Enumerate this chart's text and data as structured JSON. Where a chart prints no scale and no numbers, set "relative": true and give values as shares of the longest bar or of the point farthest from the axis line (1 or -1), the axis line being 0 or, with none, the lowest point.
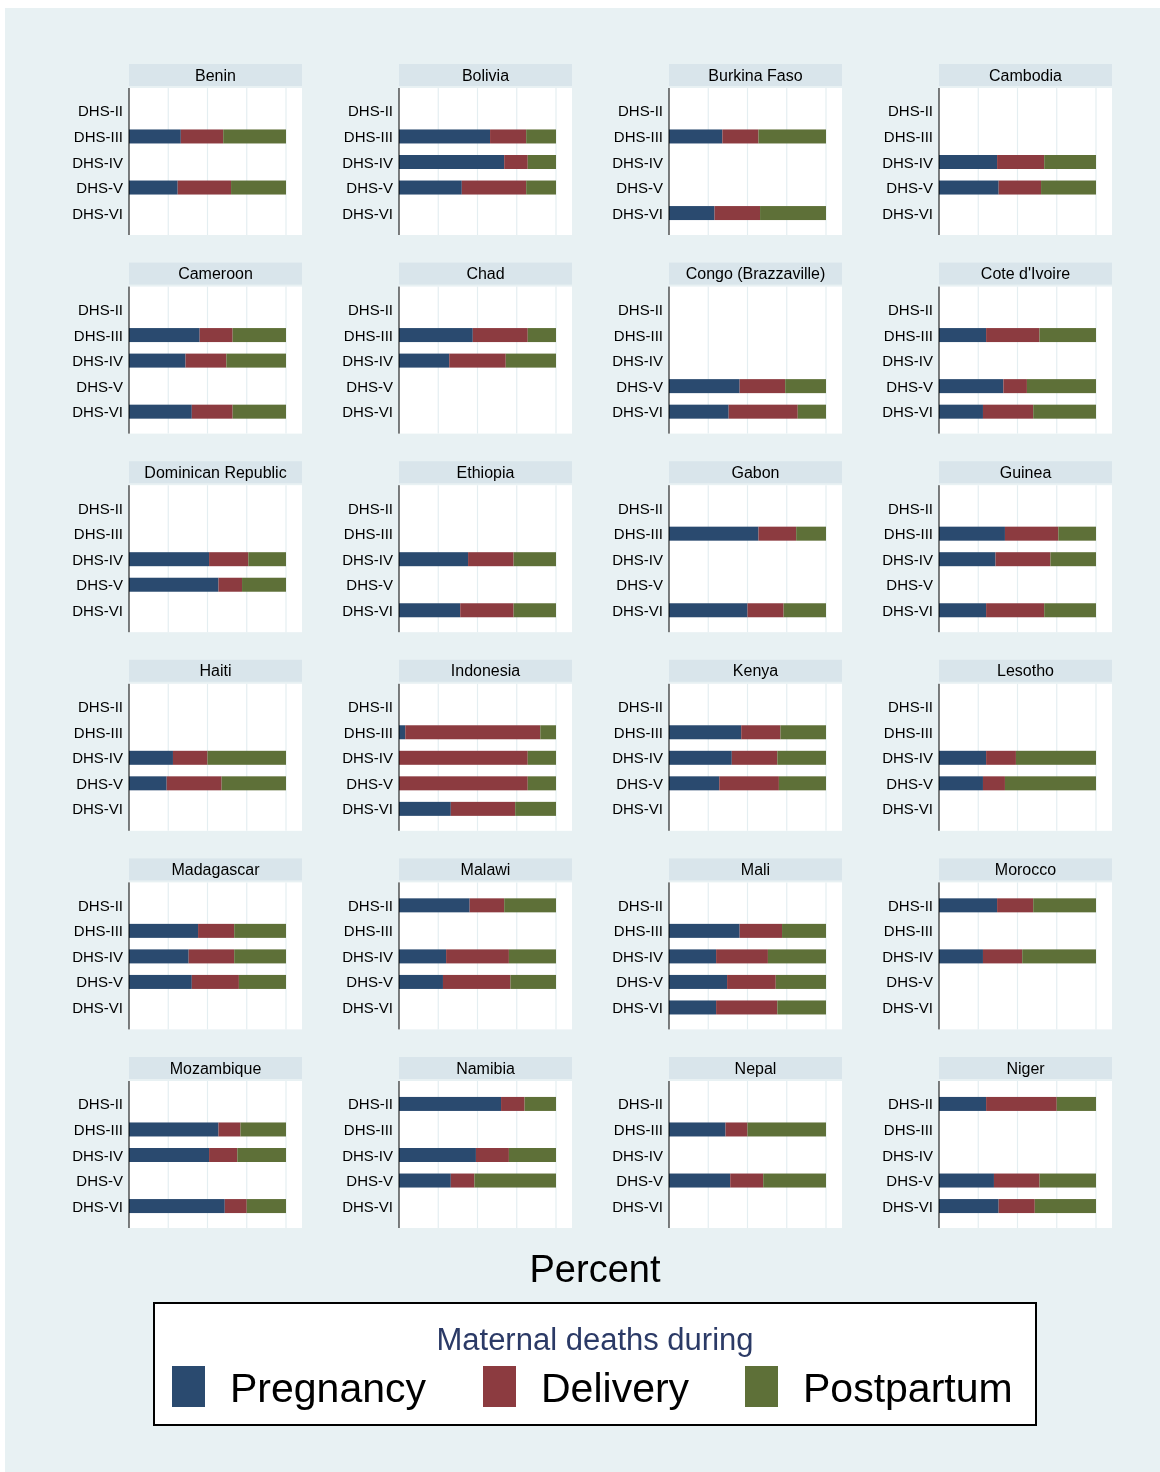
{
  "chart_data": [
    {
      "type": "bar",
      "title": "Benin",
      "orientation": "horizontal",
      "stacked": true,
      "relative": true,
      "grid": "x",
      "tick_labels": "y",
      "legend": "bottom",
      "legend_title": "Maternal deaths during",
      "categories": [
        "DHS-II",
        "DHS-III",
        "DHS-IV",
        "DHS-V",
        "DHS-VI"
      ],
      "series": [
        {
          "name": "Pregnancy",
          "color": "#2a4a6f",
          "values": [
            null,
            0.33,
            null,
            0.31,
            null
          ]
        },
        {
          "name": "Delivery",
          "color": "#8c3b40",
          "values": [
            null,
            0.27,
            null,
            0.34,
            null
          ]
        },
        {
          "name": "Postpartum",
          "color": "#5e7038",
          "values": [
            null,
            0.4,
            null,
            0.35,
            null
          ]
        }
      ]
    },
    {
      "type": "bar",
      "title": "Bolivia",
      "orientation": "horizontal",
      "stacked": true,
      "relative": true,
      "grid": "x",
      "tick_labels": "y",
      "categories": [
        "DHS-II",
        "DHS-III",
        "DHS-IV",
        "DHS-V",
        "DHS-VI"
      ],
      "series": [
        {
          "color": "#2a4a6f",
          "values": [
            null,
            0.58,
            0.67,
            0.4,
            null
          ]
        },
        {
          "color": "#8c3b40",
          "values": [
            null,
            0.23,
            0.15,
            0.41,
            null
          ]
        },
        {
          "color": "#5e7038",
          "values": [
            null,
            0.19,
            0.18,
            0.19,
            null
          ]
        }
      ]
    },
    {
      "type": "bar",
      "title": "Burkina Faso",
      "orientation": "horizontal",
      "stacked": true,
      "relative": true,
      "grid": "x",
      "tick_labels": "y",
      "categories": [
        "DHS-II",
        "DHS-III",
        "DHS-IV",
        "DHS-V",
        "DHS-VI"
      ],
      "series": [
        {
          "color": "#2a4a6f",
          "values": [
            null,
            0.34,
            null,
            null,
            0.29
          ]
        },
        {
          "color": "#8c3b40",
          "values": [
            null,
            0.23,
            null,
            null,
            0.29
          ]
        },
        {
          "color": "#5e7038",
          "values": [
            null,
            0.43,
            null,
            null,
            0.42
          ]
        }
      ]
    },
    {
      "type": "bar",
      "title": "Cambodia",
      "orientation": "horizontal",
      "stacked": true,
      "relative": true,
      "grid": "x",
      "tick_labels": "y",
      "categories": [
        "DHS-II",
        "DHS-III",
        "DHS-IV",
        "DHS-V",
        "DHS-VI"
      ],
      "series": [
        {
          "color": "#2a4a6f",
          "values": [
            null,
            null,
            0.37,
            0.38,
            null
          ]
        },
        {
          "color": "#8c3b40",
          "values": [
            null,
            null,
            0.3,
            0.27,
            null
          ]
        },
        {
          "color": "#5e7038",
          "values": [
            null,
            null,
            0.33,
            0.35,
            null
          ]
        }
      ]
    },
    {
      "type": "bar",
      "title": "Cameroon",
      "orientation": "horizontal",
      "stacked": true,
      "relative": true,
      "grid": "x",
      "tick_labels": "y",
      "categories": [
        "DHS-II",
        "DHS-III",
        "DHS-IV",
        "DHS-V",
        "DHS-VI"
      ],
      "series": [
        {
          "color": "#2a4a6f",
          "values": [
            null,
            0.45,
            0.36,
            null,
            0.4
          ]
        },
        {
          "color": "#8c3b40",
          "values": [
            null,
            0.21,
            0.26,
            null,
            0.26
          ]
        },
        {
          "color": "#5e7038",
          "values": [
            null,
            0.34,
            0.38,
            null,
            0.34
          ]
        }
      ]
    },
    {
      "type": "bar",
      "title": "Chad",
      "orientation": "horizontal",
      "stacked": true,
      "relative": true,
      "grid": "x",
      "tick_labels": "y",
      "categories": [
        "DHS-II",
        "DHS-III",
        "DHS-IV",
        "DHS-V",
        "DHS-VI"
      ],
      "series": [
        {
          "color": "#2a4a6f",
          "values": [
            null,
            0.47,
            0.32,
            null,
            null
          ]
        },
        {
          "color": "#8c3b40",
          "values": [
            null,
            0.35,
            0.36,
            null,
            null
          ]
        },
        {
          "color": "#5e7038",
          "values": [
            null,
            0.18,
            0.32,
            null,
            null
          ]
        }
      ]
    },
    {
      "type": "bar",
      "title": "Congo (Brazzaville)",
      "orientation": "horizontal",
      "stacked": true,
      "relative": true,
      "grid": "x",
      "tick_labels": "y",
      "categories": [
        "DHS-II",
        "DHS-III",
        "DHS-IV",
        "DHS-V",
        "DHS-VI"
      ],
      "series": [
        {
          "color": "#2a4a6f",
          "values": [
            null,
            null,
            null,
            0.45,
            0.38
          ]
        },
        {
          "color": "#8c3b40",
          "values": [
            null,
            null,
            null,
            0.29,
            0.44
          ]
        },
        {
          "color": "#5e7038",
          "values": [
            null,
            null,
            null,
            0.26,
            0.18
          ]
        }
      ]
    },
    {
      "type": "bar",
      "title": "Cote d'Ivoire",
      "orientation": "horizontal",
      "stacked": true,
      "relative": true,
      "grid": "x",
      "tick_labels": "y",
      "categories": [
        "DHS-II",
        "DHS-III",
        "DHS-IV",
        "DHS-V",
        "DHS-VI"
      ],
      "series": [
        {
          "color": "#2a4a6f",
          "values": [
            null,
            0.3,
            null,
            0.41,
            0.28
          ]
        },
        {
          "color": "#8c3b40",
          "values": [
            null,
            0.34,
            null,
            0.15,
            0.32
          ]
        },
        {
          "color": "#5e7038",
          "values": [
            null,
            0.36,
            null,
            0.44,
            0.4
          ]
        }
      ]
    },
    {
      "type": "bar",
      "title": "Dominican Republic",
      "orientation": "horizontal",
      "stacked": true,
      "relative": true,
      "grid": "x",
      "tick_labels": "y",
      "categories": [
        "DHS-II",
        "DHS-III",
        "DHS-IV",
        "DHS-V",
        "DHS-VI"
      ],
      "series": [
        {
          "color": "#2a4a6f",
          "values": [
            null,
            null,
            0.51,
            0.57,
            null
          ]
        },
        {
          "color": "#8c3b40",
          "values": [
            null,
            null,
            0.25,
            0.15,
            null
          ]
        },
        {
          "color": "#5e7038",
          "values": [
            null,
            null,
            0.24,
            0.28,
            null
          ]
        }
      ]
    },
    {
      "type": "bar",
      "title": "Ethiopia",
      "orientation": "horizontal",
      "stacked": true,
      "relative": true,
      "grid": "x",
      "tick_labels": "y",
      "categories": [
        "DHS-II",
        "DHS-III",
        "DHS-IV",
        "DHS-V",
        "DHS-VI"
      ],
      "series": [
        {
          "color": "#2a4a6f",
          "values": [
            null,
            null,
            0.44,
            null,
            0.39
          ]
        },
        {
          "color": "#8c3b40",
          "values": [
            null,
            null,
            0.29,
            null,
            0.34
          ]
        },
        {
          "color": "#5e7038",
          "values": [
            null,
            null,
            0.27,
            null,
            0.27
          ]
        }
      ]
    },
    {
      "type": "bar",
      "title": "Gabon",
      "orientation": "horizontal",
      "stacked": true,
      "relative": true,
      "grid": "x",
      "tick_labels": "y",
      "categories": [
        "DHS-II",
        "DHS-III",
        "DHS-IV",
        "DHS-V",
        "DHS-VI"
      ],
      "series": [
        {
          "color": "#2a4a6f",
          "values": [
            null,
            0.57,
            null,
            null,
            0.5
          ]
        },
        {
          "color": "#8c3b40",
          "values": [
            null,
            0.24,
            null,
            null,
            0.23
          ]
        },
        {
          "color": "#5e7038",
          "values": [
            null,
            0.19,
            null,
            null,
            0.27
          ]
        }
      ]
    },
    {
      "type": "bar",
      "title": "Guinea",
      "orientation": "horizontal",
      "stacked": true,
      "relative": true,
      "grid": "x",
      "tick_labels": "y",
      "categories": [
        "DHS-II",
        "DHS-III",
        "DHS-IV",
        "DHS-V",
        "DHS-VI"
      ],
      "series": [
        {
          "color": "#2a4a6f",
          "values": [
            null,
            0.42,
            0.36,
            null,
            0.3
          ]
        },
        {
          "color": "#8c3b40",
          "values": [
            null,
            0.34,
            0.35,
            null,
            0.37
          ]
        },
        {
          "color": "#5e7038",
          "values": [
            null,
            0.24,
            0.29,
            null,
            0.33
          ]
        }
      ]
    },
    {
      "type": "bar",
      "title": "Haiti",
      "orientation": "horizontal",
      "stacked": true,
      "relative": true,
      "grid": "x",
      "tick_labels": "y",
      "categories": [
        "DHS-II",
        "DHS-III",
        "DHS-IV",
        "DHS-V",
        "DHS-VI"
      ],
      "series": [
        {
          "color": "#2a4a6f",
          "values": [
            null,
            null,
            0.28,
            0.24,
            null
          ]
        },
        {
          "color": "#8c3b40",
          "values": [
            null,
            null,
            0.22,
            0.35,
            null
          ]
        },
        {
          "color": "#5e7038",
          "values": [
            null,
            null,
            0.5,
            0.41,
            null
          ]
        }
      ]
    },
    {
      "type": "bar",
      "title": "Indonesia",
      "orientation": "horizontal",
      "stacked": true,
      "relative": true,
      "grid": "x",
      "tick_labels": "y",
      "categories": [
        "DHS-II",
        "DHS-III",
        "DHS-IV",
        "DHS-V",
        "DHS-VI"
      ],
      "series": [
        {
          "color": "#2a4a6f",
          "values": [
            null,
            0.04,
            0,
            0,
            0.33
          ]
        },
        {
          "color": "#8c3b40",
          "values": [
            null,
            0.86,
            0.82,
            0.82,
            0.41
          ]
        },
        {
          "color": "#5e7038",
          "values": [
            null,
            0.1,
            0.18,
            0.18,
            0.26
          ]
        }
      ]
    },
    {
      "type": "bar",
      "title": "Kenya",
      "orientation": "horizontal",
      "stacked": true,
      "relative": true,
      "grid": "x",
      "tick_labels": "y",
      "categories": [
        "DHS-II",
        "DHS-III",
        "DHS-IV",
        "DHS-V",
        "DHS-VI"
      ],
      "series": [
        {
          "color": "#2a4a6f",
          "values": [
            null,
            0.46,
            0.4,
            0.32,
            null
          ]
        },
        {
          "color": "#8c3b40",
          "values": [
            null,
            0.25,
            0.29,
            0.38,
            null
          ]
        },
        {
          "color": "#5e7038",
          "values": [
            null,
            0.29,
            0.31,
            0.3,
            null
          ]
        }
      ]
    },
    {
      "type": "bar",
      "title": "Lesotho",
      "orientation": "horizontal",
      "stacked": true,
      "relative": true,
      "grid": "x",
      "tick_labels": "y",
      "categories": [
        "DHS-II",
        "DHS-III",
        "DHS-IV",
        "DHS-V",
        "DHS-VI"
      ],
      "series": [
        {
          "color": "#2a4a6f",
          "values": [
            null,
            null,
            0.3,
            0.28,
            null
          ]
        },
        {
          "color": "#8c3b40",
          "values": [
            null,
            null,
            0.19,
            0.14,
            null
          ]
        },
        {
          "color": "#5e7038",
          "values": [
            null,
            null,
            0.51,
            0.58,
            null
          ]
        }
      ]
    },
    {
      "type": "bar",
      "title": "Madagascar",
      "orientation": "horizontal",
      "stacked": true,
      "relative": true,
      "grid": "x",
      "tick_labels": "y",
      "categories": [
        "DHS-II",
        "DHS-III",
        "DHS-IV",
        "DHS-V",
        "DHS-VI"
      ],
      "series": [
        {
          "color": "#2a4a6f",
          "values": [
            null,
            0.44,
            0.38,
            0.4,
            null
          ]
        },
        {
          "color": "#8c3b40",
          "values": [
            null,
            0.23,
            0.29,
            0.3,
            null
          ]
        },
        {
          "color": "#5e7038",
          "values": [
            null,
            0.33,
            0.33,
            0.3,
            null
          ]
        }
      ]
    },
    {
      "type": "bar",
      "title": "Malawi",
      "orientation": "horizontal",
      "stacked": true,
      "relative": true,
      "grid": "x",
      "tick_labels": "y",
      "categories": [
        "DHS-II",
        "DHS-III",
        "DHS-IV",
        "DHS-V",
        "DHS-VI"
      ],
      "series": [
        {
          "color": "#2a4a6f",
          "values": [
            0.45,
            null,
            0.3,
            0.28,
            null
          ]
        },
        {
          "color": "#8c3b40",
          "values": [
            0.22,
            null,
            0.4,
            0.43,
            null
          ]
        },
        {
          "color": "#5e7038",
          "values": [
            0.33,
            null,
            0.3,
            0.29,
            null
          ]
        }
      ]
    },
    {
      "type": "bar",
      "title": "Mali",
      "orientation": "horizontal",
      "stacked": true,
      "relative": true,
      "grid": "x",
      "tick_labels": "y",
      "categories": [
        "DHS-II",
        "DHS-III",
        "DHS-IV",
        "DHS-V",
        "DHS-VI"
      ],
      "series": [
        {
          "color": "#2a4a6f",
          "values": [
            null,
            0.45,
            0.3,
            0.37,
            0.3
          ]
        },
        {
          "color": "#8c3b40",
          "values": [
            null,
            0.27,
            0.33,
            0.31,
            0.39
          ]
        },
        {
          "color": "#5e7038",
          "values": [
            null,
            0.28,
            0.37,
            0.32,
            0.31
          ]
        }
      ]
    },
    {
      "type": "bar",
      "title": "Morocco",
      "orientation": "horizontal",
      "stacked": true,
      "relative": true,
      "grid": "x",
      "tick_labels": "y",
      "categories": [
        "DHS-II",
        "DHS-III",
        "DHS-IV",
        "DHS-V",
        "DHS-VI"
      ],
      "series": [
        {
          "color": "#2a4a6f",
          "values": [
            0.37,
            null,
            0.28,
            null,
            null
          ]
        },
        {
          "color": "#8c3b40",
          "values": [
            0.23,
            null,
            0.25,
            null,
            null
          ]
        },
        {
          "color": "#5e7038",
          "values": [
            0.4,
            null,
            0.47,
            null,
            null
          ]
        }
      ]
    },
    {
      "type": "bar",
      "title": "Mozambique",
      "orientation": "horizontal",
      "stacked": true,
      "relative": true,
      "grid": "x",
      "tick_labels": "y",
      "categories": [
        "DHS-II",
        "DHS-III",
        "DHS-IV",
        "DHS-V",
        "DHS-VI"
      ],
      "series": [
        {
          "color": "#2a4a6f",
          "values": [
            null,
            0.57,
            0.51,
            null,
            0.61
          ]
        },
        {
          "color": "#8c3b40",
          "values": [
            null,
            0.14,
            0.18,
            null,
            0.14
          ]
        },
        {
          "color": "#5e7038",
          "values": [
            null,
            0.29,
            0.31,
            null,
            0.25
          ]
        }
      ]
    },
    {
      "type": "bar",
      "title": "Namibia",
      "orientation": "horizontal",
      "stacked": true,
      "relative": true,
      "grid": "x",
      "tick_labels": "y",
      "categories": [
        "DHS-II",
        "DHS-III",
        "DHS-IV",
        "DHS-V",
        "DHS-VI"
      ],
      "series": [
        {
          "color": "#2a4a6f",
          "values": [
            0.65,
            null,
            0.49,
            0.33,
            null
          ]
        },
        {
          "color": "#8c3b40",
          "values": [
            0.15,
            null,
            0.21,
            0.15,
            null
          ]
        },
        {
          "color": "#5e7038",
          "values": [
            0.2,
            null,
            0.3,
            0.52,
            null
          ]
        }
      ]
    },
    {
      "type": "bar",
      "title": "Nepal",
      "orientation": "horizontal",
      "stacked": true,
      "relative": true,
      "grid": "x",
      "tick_labels": "y",
      "categories": [
        "DHS-II",
        "DHS-III",
        "DHS-IV",
        "DHS-V",
        "DHS-VI"
      ],
      "series": [
        {
          "color": "#2a4a6f",
          "values": [
            null,
            0.36,
            null,
            0.39,
            null
          ]
        },
        {
          "color": "#8c3b40",
          "values": [
            null,
            0.14,
            null,
            0.21,
            null
          ]
        },
        {
          "color": "#5e7038",
          "values": [
            null,
            0.5,
            null,
            0.4,
            null
          ]
        }
      ]
    },
    {
      "type": "bar",
      "title": "Niger",
      "orientation": "horizontal",
      "stacked": true,
      "relative": true,
      "grid": "x",
      "tick_labels": "y",
      "categories": [
        "DHS-II",
        "DHS-III",
        "DHS-IV",
        "DHS-V",
        "DHS-VI"
      ],
      "series": [
        {
          "color": "#2a4a6f",
          "values": [
            0.3,
            null,
            null,
            0.35,
            0.38
          ]
        },
        {
          "color": "#8c3b40",
          "values": [
            0.45,
            null,
            null,
            0.29,
            0.23
          ]
        },
        {
          "color": "#5e7038",
          "values": [
            0.25,
            null,
            null,
            0.36,
            0.39
          ]
        }
      ]
    },
    {
      "type": "other",
      "xlabel": "Percent"
    }
  ]
}
